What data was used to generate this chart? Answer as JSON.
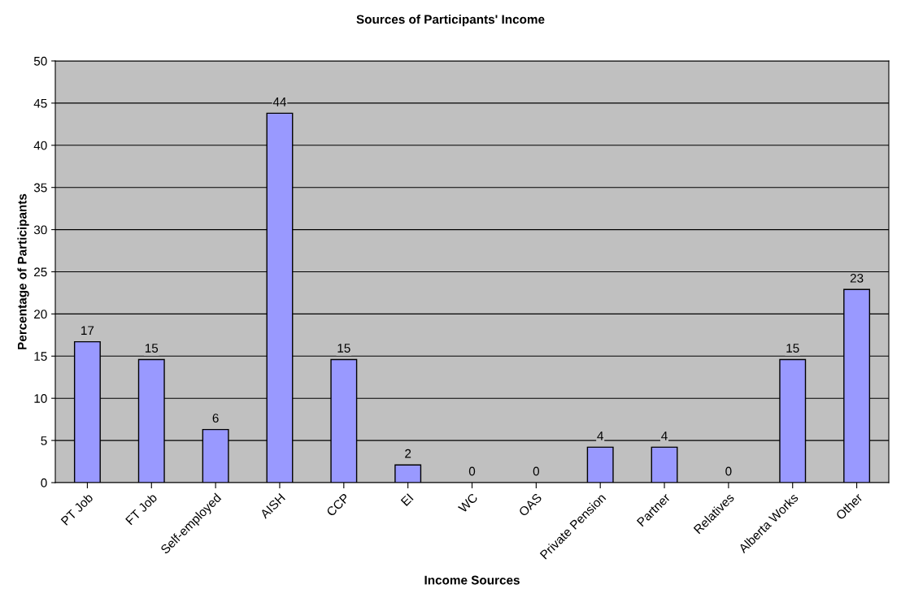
{
  "chart_data": {
    "type": "bar",
    "title": "Sources of Participants' Income",
    "xlabel": "Income Sources",
    "ylabel": "Percentage of Participants",
    "categories": [
      "PT Job",
      "FT Job",
      "Self-employed",
      "AISH",
      "CCP",
      "EI",
      "WC",
      "OAS",
      "Private Pension",
      "Partner",
      "Relatives",
      "Alberta Works",
      "Other"
    ],
    "values": [
      16.7,
      14.6,
      6.3,
      43.8,
      14.6,
      2.1,
      0,
      0,
      4.2,
      4.2,
      0,
      14.6,
      22.9
    ],
    "value_labels": [
      "17",
      "15",
      "6",
      "44",
      "15",
      "2",
      "0",
      "0",
      "4",
      "4",
      "0",
      "15",
      "23"
    ],
    "color": "#9999ff",
    "ylim": [
      0,
      50
    ],
    "yticks": [
      0,
      5,
      10,
      15,
      20,
      25,
      30,
      35,
      40,
      45,
      50
    ],
    "grid": "y",
    "legend": false
  }
}
